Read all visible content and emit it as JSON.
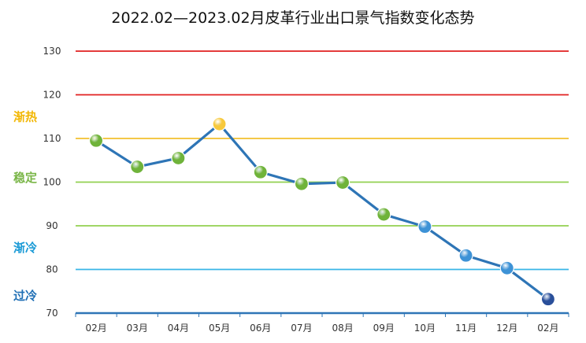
{
  "chart_data": {
    "type": "line",
    "title": "2022.02—2023.02月皮革行业出口景气指数变化态势",
    "xlabel": "",
    "ylabel": "",
    "categories": [
      "02月",
      "03月",
      "04月",
      "05月",
      "06月",
      "07月",
      "08月",
      "09月",
      "10月",
      "11月",
      "12月",
      "02月"
    ],
    "values": [
      109.5,
      103.5,
      105.5,
      113.3,
      102.3,
      99.6,
      99.9,
      92.6,
      89.8,
      83.2,
      80.3,
      73.2
    ],
    "point_colors": [
      "#6fb33a",
      "#6fb33a",
      "#6fb33a",
      "#f7c93c",
      "#6fb33a",
      "#6fb33a",
      "#6fb33a",
      "#6fb33a",
      "#3d92d6",
      "#3d92d6",
      "#3d92d6",
      "#2a4f9a"
    ],
    "line_color": "#2e75b6",
    "ylim": [
      70,
      130
    ],
    "yticks": [
      70,
      80,
      90,
      100,
      110,
      120,
      130
    ],
    "grid": true,
    "reference_lines": [
      {
        "value": 130,
        "color": "#e02020"
      },
      {
        "value": 120,
        "color": "#e02020"
      },
      {
        "value": 110,
        "color": "#f2c12e"
      },
      {
        "value": 100,
        "color": "#92d050"
      },
      {
        "value": 90,
        "color": "#92d050"
      },
      {
        "value": 80,
        "color": "#39b5e6"
      },
      {
        "value": 70,
        "color": "#2e75b6"
      }
    ],
    "zone_labels": [
      {
        "text": "渐热",
        "value": 115,
        "color": "#f2b705"
      },
      {
        "text": "稳定",
        "value": 101,
        "color": "#7ab648"
      },
      {
        "text": "渐冷",
        "value": 85,
        "color": "#1a9ad6"
      },
      {
        "text": "过冷",
        "value": 74,
        "color": "#1f6fb5"
      }
    ]
  }
}
